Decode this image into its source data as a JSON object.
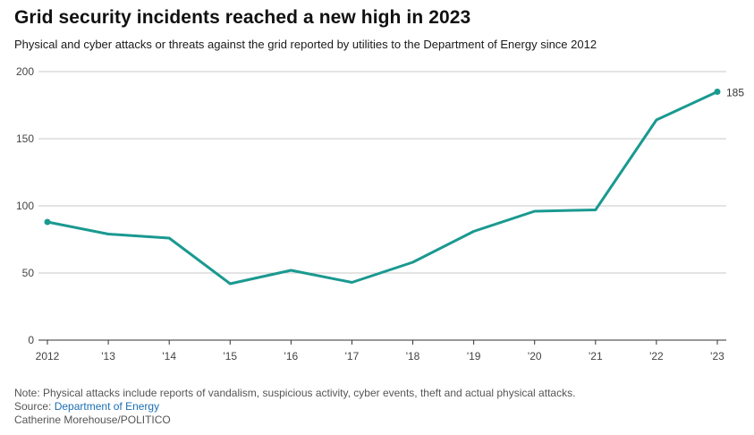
{
  "header": {
    "title": "Grid security incidents reached a new high in 2023",
    "subtitle": "Physical and cyber attacks or threats against the grid reported by utilities to the Department of Energy since 2012"
  },
  "chart_data": {
    "type": "line",
    "title": "Grid security incidents reached a new high in 2023",
    "subtitle": "Physical and cyber attacks or threats against the grid reported by utilities to the Department of Energy since 2012",
    "x": [
      2012,
      2013,
      2014,
      2015,
      2016,
      2017,
      2018,
      2019,
      2020,
      2021,
      2022,
      2023
    ],
    "x_tick_labels": [
      "2012",
      "'13",
      "'14",
      "'15",
      "'16",
      "'17",
      "'18",
      "'19",
      "'20",
      "'21",
      "'22",
      "'23"
    ],
    "series": [
      {
        "values": [
          88,
          79,
          76,
          42,
          52,
          43,
          58,
          81,
          96,
          97,
          164,
          185
        ],
        "color": "#1a9990"
      }
    ],
    "y_ticks": [
      0,
      50,
      100,
      150,
      200
    ],
    "ylim": [
      0,
      200
    ],
    "grid": true,
    "annotations": [
      {
        "x": 2023,
        "y": 185,
        "text": "185"
      }
    ],
    "endpoint_markers": true
  },
  "footer": {
    "note": "Note: Physical attacks include reports of vandalism, suspicious activity, cyber events, theft and actual physical attacks.",
    "source_prefix": "Source: ",
    "source_link": "Department of Energy",
    "credit": "Catherine Morehouse/POLITICO"
  },
  "colors": {
    "line": "#1a9990",
    "grid": "#c8c8c8",
    "axis": "#333333",
    "link": "#1b6fb3"
  }
}
